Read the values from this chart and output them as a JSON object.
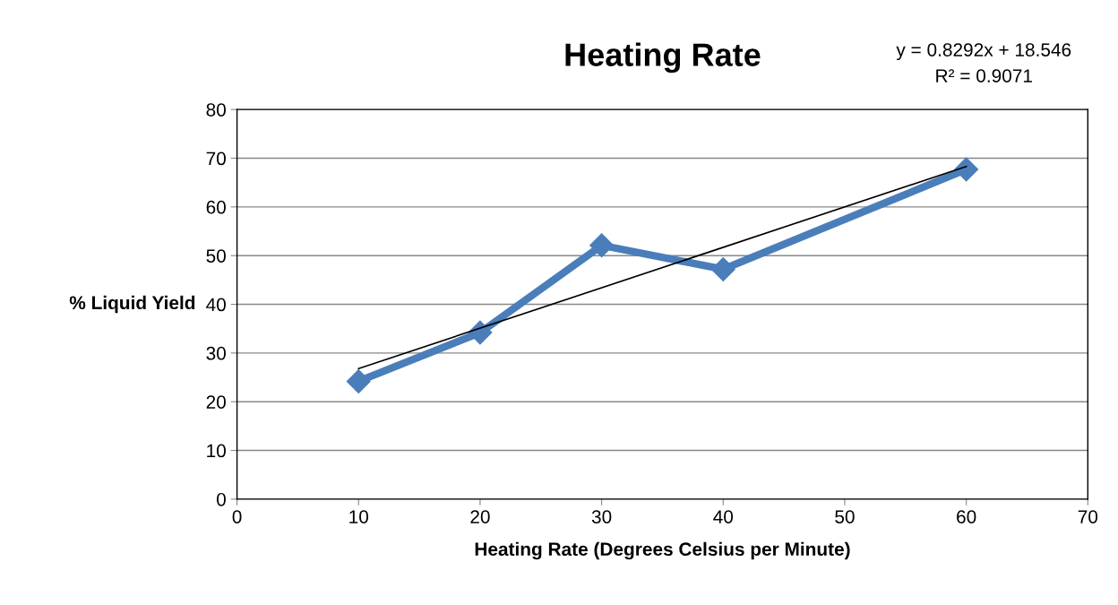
{
  "chart_data": {
    "type": "line",
    "title": "Heating Rate",
    "xlabel": "Heating Rate (Degrees Celsius per Minute)",
    "ylabel": "% Liquid Yield",
    "x": [
      10,
      20,
      30,
      40,
      60
    ],
    "series": [
      {
        "color": "#4a7ebb",
        "marker": "diamond",
        "values": [
          24.2,
          34.2,
          52.1,
          47.2,
          67.7
        ]
      },
      {
        "color": "#000000",
        "marker": "none",
        "x": [
          10,
          60
        ],
        "values": [
          26.8,
          68.3
        ]
      }
    ],
    "xlim": [
      0,
      70
    ],
    "xticks": [
      0,
      10,
      20,
      30,
      40,
      50,
      60,
      70
    ],
    "ylim": [
      0,
      80
    ],
    "yticks": [
      0,
      10,
      20,
      30,
      40,
      50,
      60,
      70,
      80
    ],
    "grid": "y",
    "annotations": [
      "y = 0.8292x + 18.546",
      "R² = 0.9071"
    ]
  }
}
